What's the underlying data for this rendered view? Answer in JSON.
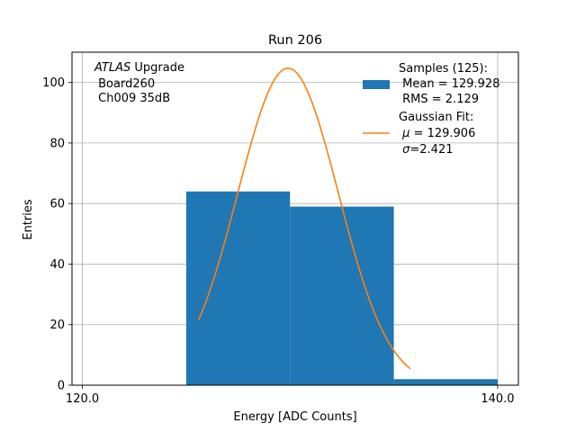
{
  "chart_data": {
    "type": "bar",
    "title": "Run 206",
    "xlabel": "Energy [ADC Counts]",
    "ylabel": "Entries",
    "xlim": [
      119.5,
      141.0
    ],
    "ylim": [
      0,
      110
    ],
    "grid": true,
    "x_ticks": [
      {
        "value": 120.0,
        "label": "120.0"
      },
      {
        "value": 140.0,
        "label": "140.0"
      }
    ],
    "y_ticks": [
      {
        "value": 0,
        "label": "0"
      },
      {
        "value": 20,
        "label": "20"
      },
      {
        "value": 40,
        "label": "40"
      },
      {
        "value": 60,
        "label": "60"
      },
      {
        "value": 80,
        "label": "80"
      },
      {
        "value": 100,
        "label": "100"
      }
    ],
    "histogram": {
      "bins": [
        {
          "x0": 125,
          "x1": 130,
          "count": 64
        },
        {
          "x0": 130,
          "x1": 135,
          "count": 59
        },
        {
          "x0": 135,
          "x1": 140,
          "count": 2
        }
      ],
      "color": "#1f77b4"
    },
    "fit": {
      "color": "#ff7f0e",
      "mu": 129.906,
      "sigma": 2.421,
      "amplitude": 104.7,
      "x_range": [
        125.6,
        135.8
      ]
    },
    "annotation": {
      "line1_italic": "ATLAS",
      "line1_rest": " Upgrade",
      "line2": " Board260",
      "line3": " Ch009 35dB"
    },
    "legend": {
      "placement": "top-right",
      "samples": {
        "line1": "Samples (125):",
        "line2": " Mean = 129.928",
        "line3": " RMS = 2.129"
      },
      "fit": {
        "line1": "Gaussian Fit:",
        "line2_prefix": " ",
        "line2_symbol": "μ",
        "line2_rest": " = 129.906",
        "line3_prefix": " ",
        "line3_symbol": "σ",
        "line3_rest": "=2.421"
      }
    }
  }
}
